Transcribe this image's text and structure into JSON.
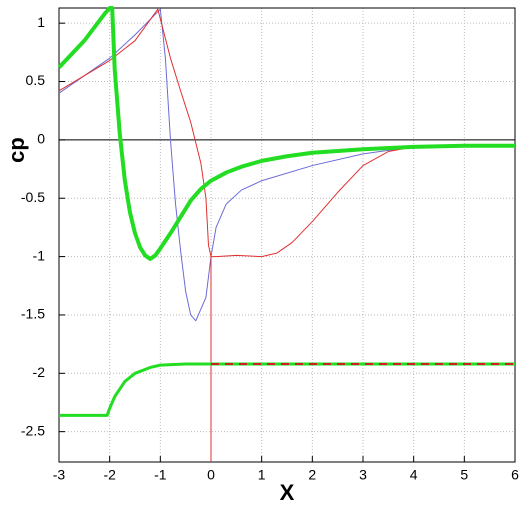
{
  "chart_data": {
    "type": "line",
    "xlabel": "X",
    "ylabel": "cp",
    "xlim": [
      -3,
      6
    ],
    "ylim": [
      -2.76,
      1.13
    ],
    "xticks": [
      -3,
      -2,
      -1,
      0,
      1,
      2,
      3,
      4,
      5,
      6
    ],
    "yticks": [
      1,
      0.5,
      0,
      -0.5,
      -1,
      -1.5,
      -2,
      -2.5
    ],
    "grid": true,
    "series": [
      {
        "color": "#000000",
        "width": 1,
        "x": [
          -3,
          6
        ],
        "values": [
          0,
          0
        ]
      },
      {
        "color": "#6b6bd6",
        "width": 1,
        "x": [
          -3,
          -2,
          -1.5,
          -1.0,
          -0.9,
          -0.8,
          -0.7,
          -0.6,
          -0.5,
          -0.4,
          -0.3,
          -0.2,
          -0.1,
          0,
          0.1,
          0.3,
          0.6,
          1,
          2,
          3,
          4,
          5,
          6
        ],
        "values": [
          0.4,
          0.7,
          0.9,
          1.12,
          0.7,
          0.0,
          -0.55,
          -0.95,
          -1.3,
          -1.5,
          -1.55,
          -1.45,
          -1.35,
          -1.0,
          -0.75,
          -0.55,
          -0.43,
          -0.35,
          -0.22,
          -0.12,
          -0.06,
          -0.05,
          -0.04
        ]
      },
      {
        "color": "#e03030",
        "width": 1,
        "x": [
          -3,
          -2,
          -1.5,
          -1.05,
          -0.8,
          -0.6,
          -0.4,
          -0.2,
          -0.1,
          -0.05,
          0,
          0.1,
          0.5,
          1,
          1.3,
          1.6,
          2,
          2.5,
          3,
          3.5,
          4,
          6
        ],
        "values": [
          0.42,
          0.68,
          0.85,
          1.12,
          0.7,
          0.42,
          0.15,
          -0.2,
          -0.5,
          -0.9,
          -1.0,
          -1.0,
          -0.99,
          -1.0,
          -0.97,
          -0.88,
          -0.7,
          -0.45,
          -0.22,
          -0.1,
          -0.06,
          -0.05
        ]
      },
      {
        "color": "#e03030",
        "width": 1,
        "x": [
          0,
          0
        ],
        "values": [
          -1.0,
          -2.76
        ]
      },
      {
        "color": "#22dd22",
        "width": 4,
        "x": [
          -3,
          -2.5,
          -2.1,
          -2.0,
          -1.95,
          -1.9,
          -1.8,
          -1.7,
          -1.6,
          -1.5,
          -1.4,
          -1.3,
          -1.2,
          -1.1,
          -1.0,
          -0.8,
          -0.6,
          -0.4,
          -0.2,
          0,
          0.3,
          0.6,
          1,
          1.5,
          2,
          3,
          4,
          5,
          6
        ],
        "values": [
          0.62,
          0.85,
          1.08,
          1.13,
          1.13,
          0.6,
          0.05,
          -0.35,
          -0.62,
          -0.8,
          -0.92,
          -0.99,
          -1.02,
          -0.99,
          -0.93,
          -0.8,
          -0.66,
          -0.52,
          -0.42,
          -0.35,
          -0.28,
          -0.23,
          -0.18,
          -0.14,
          -0.11,
          -0.08,
          -0.06,
          -0.05,
          -0.05
        ]
      },
      {
        "color": "#22dd22",
        "width": 3,
        "x": [
          -3,
          -2.05,
          -2,
          -1.9,
          -1.7,
          -1.5,
          -1.2,
          -1,
          -0.5,
          0,
          6
        ],
        "values": [
          -2.36,
          -2.36,
          -2.3,
          -2.2,
          -2.07,
          -2.0,
          -1.95,
          -1.93,
          -1.92,
          -1.92,
          -1.92
        ]
      },
      {
        "color": "#cc2020",
        "width": 2,
        "dash": "8 6",
        "x": [
          0,
          6
        ],
        "values": [
          -1.92,
          -1.92
        ]
      }
    ]
  }
}
